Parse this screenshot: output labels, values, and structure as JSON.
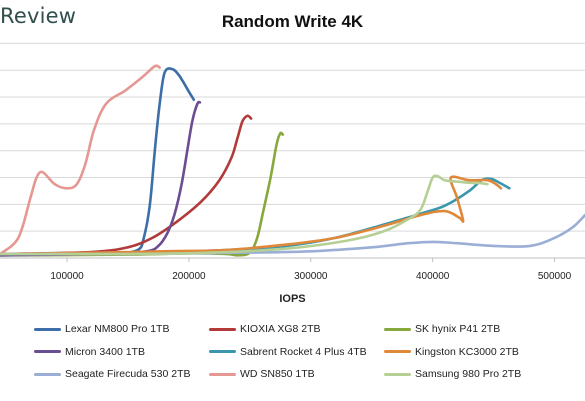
{
  "header": {
    "brand": "Review"
  },
  "chart_data": {
    "type": "line",
    "title": "Random Write 4K",
    "xlabel": "IOPS",
    "ylabel": "",
    "xlim": [
      45000,
      525000
    ],
    "ylim": [
      0,
      17
    ],
    "x_ticks": [
      100000,
      200000,
      300000,
      400000,
      500000
    ],
    "x_tick_labels": [
      "100000",
      "200000",
      "300000",
      "400000",
      "500000"
    ],
    "grid": "horizontal",
    "legend_position": "bottom",
    "series": [
      {
        "name": "Lexar NM800 Pro 1TB",
        "color": "#3c6fa8",
        "x": [
          45000,
          100000,
          140000,
          158000,
          163000,
          168000,
          172000,
          176000,
          180000,
          186000,
          192000,
          200000,
          204000
        ],
        "y": [
          0.2,
          0.25,
          0.35,
          0.6,
          1.5,
          4.0,
          8.0,
          11.5,
          13.8,
          14.1,
          13.6,
          12.4,
          11.8
        ]
      },
      {
        "name": "KIOXIA XG8 2TB",
        "color": "#b23a3a",
        "x": [
          45000,
          120000,
          150000,
          170000,
          190000,
          210000,
          225000,
          235000,
          240000,
          244000,
          248000,
          251000
        ],
        "y": [
          0.3,
          0.45,
          0.8,
          1.5,
          2.7,
          4.2,
          5.8,
          7.5,
          9.0,
          10.2,
          10.6,
          10.4
        ]
      },
      {
        "name": "SK hynix P41 2TB",
        "color": "#86a83c",
        "x": [
          45000,
          150000,
          200000,
          230000,
          240000,
          250000,
          256000,
          261000,
          267000,
          272000,
          275000,
          277000
        ],
        "y": [
          0.2,
          0.25,
          0.35,
          0.3,
          0.2,
          0.4,
          1.5,
          3.5,
          6.0,
          8.5,
          9.3,
          9.2
        ]
      },
      {
        "name": "Micron 3400 1TB",
        "color": "#6b4d91",
        "x": [
          45000,
          130000,
          165000,
          175000,
          182000,
          188000,
          194000,
          199000,
          203000,
          207000,
          209000
        ],
        "y": [
          0.2,
          0.3,
          0.5,
          0.9,
          1.8,
          3.2,
          5.5,
          8.2,
          10.3,
          11.5,
          11.6
        ]
      },
      {
        "name": "Sabrent Rocket 4 Plus 4TB",
        "color": "#3a96ad",
        "x": [
          45000,
          120000,
          180000,
          230000,
          280000,
          320000,
          360000,
          390000,
          410000,
          430000,
          440000,
          448000,
          455000,
          463000
        ],
        "y": [
          0.3,
          0.35,
          0.45,
          0.6,
          0.9,
          1.5,
          2.5,
          3.3,
          3.9,
          5.0,
          5.8,
          5.9,
          5.6,
          5.2
        ]
      },
      {
        "name": "Kingston KC3000 2TB",
        "color": "#e0883a",
        "x": [
          45000,
          130000,
          180000,
          230000,
          280000,
          320000,
          360000,
          390000,
          410000,
          422000,
          425000,
          420000,
          415000,
          430000,
          445000,
          452000,
          456000
        ],
        "y": [
          0.3,
          0.4,
          0.5,
          0.6,
          1.0,
          1.5,
          2.4,
          3.2,
          3.5,
          3.0,
          2.8,
          4.5,
          6.0,
          5.8,
          5.8,
          5.5,
          5.2
        ]
      },
      {
        "name": "Seagate Firecuda 530 2TB",
        "color": "#9aaed6",
        "x": [
          45000,
          150000,
          250000,
          300000,
          350000,
          380000,
          400000,
          420000,
          450000,
          480000,
          500000,
          515000,
          525000
        ],
        "y": [
          0.3,
          0.3,
          0.4,
          0.5,
          0.8,
          1.1,
          1.2,
          1.1,
          0.9,
          0.9,
          1.5,
          2.3,
          3.2
        ]
      },
      {
        "name": "WD SN850 1TB",
        "color": "#e59893",
        "x": [
          45000,
          60000,
          70000,
          75000,
          80000,
          90000,
          100000,
          108000,
          115000,
          122000,
          132000,
          148000,
          162000,
          172000,
          176000
        ],
        "y": [
          0.3,
          1.5,
          4.5,
          6.0,
          6.4,
          5.5,
          5.2,
          5.5,
          7.0,
          9.5,
          11.5,
          12.5,
          13.5,
          14.3,
          14.2
        ]
      },
      {
        "name": "Samsung 980 Pro 2TB",
        "color": "#b5cf94",
        "x": [
          45000,
          150000,
          220000,
          280000,
          330000,
          360000,
          380000,
          390000,
          396000,
          400000,
          404000,
          410000,
          420000,
          432000,
          438000,
          445000
        ],
        "y": [
          0.3,
          0.3,
          0.4,
          0.7,
          1.3,
          2.0,
          2.9,
          3.6,
          5.0,
          6.0,
          6.1,
          5.8,
          5.7,
          5.6,
          5.6,
          5.5
        ]
      }
    ]
  }
}
